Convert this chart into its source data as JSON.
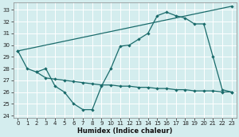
{
  "xlabel": "Humidex (Indice chaleur)",
  "bg_color": "#d4edee",
  "grid_color": "#ffffff",
  "line_color": "#1a6b6b",
  "xlim": [
    -0.5,
    23.5
  ],
  "ylim": [
    23.8,
    33.6
  ],
  "yticks": [
    24,
    25,
    26,
    27,
    28,
    29,
    30,
    31,
    32,
    33
  ],
  "xticks": [
    0,
    1,
    2,
    3,
    4,
    5,
    6,
    7,
    8,
    9,
    10,
    11,
    12,
    13,
    14,
    15,
    16,
    17,
    18,
    19,
    20,
    21,
    22,
    23
  ],
  "line1_x": [
    0,
    1,
    2,
    3,
    4,
    5,
    6,
    7,
    8,
    9,
    10,
    11,
    12,
    13,
    14,
    15,
    16,
    17,
    18,
    19,
    20,
    21,
    22,
    23
  ],
  "line1_y": [
    29.5,
    28.0,
    27.7,
    28.0,
    26.5,
    26.0,
    25.0,
    24.5,
    24.5,
    26.5,
    28.0,
    29.9,
    30.0,
    30.5,
    31.0,
    32.5,
    32.8,
    32.5,
    32.3,
    31.8,
    31.8,
    29.0,
    26.2,
    26.0
  ],
  "line2_x": [
    0,
    23
  ],
  "line2_y": [
    29.5,
    33.3
  ],
  "line3_x": [
    2,
    3,
    4,
    5,
    6,
    7,
    8,
    9,
    10,
    11,
    12,
    13,
    14,
    15,
    16,
    17,
    18,
    19,
    20,
    21,
    22,
    23
  ],
  "line3_y": [
    27.7,
    27.2,
    27.1,
    27.0,
    26.9,
    26.8,
    26.7,
    26.6,
    26.6,
    26.5,
    26.5,
    26.4,
    26.4,
    26.3,
    26.3,
    26.2,
    26.2,
    26.1,
    26.1,
    26.1,
    26.0,
    26.0
  ]
}
